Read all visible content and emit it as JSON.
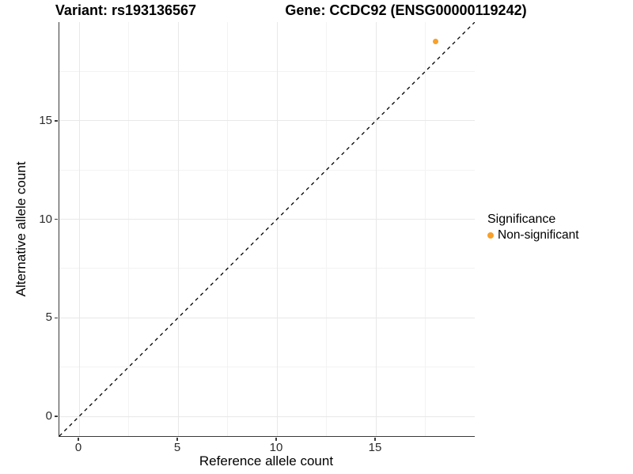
{
  "titles": {
    "variant": "Variant: rs193136567",
    "gene": "Gene: CCDC92 (ENSG00000119242)"
  },
  "chart_data": {
    "type": "scatter",
    "xlabel": "Reference allele count",
    "ylabel": "Alternative allele count",
    "x_range": [
      -1,
      20
    ],
    "y_range": [
      -1,
      20
    ],
    "x_ticks": [
      0,
      5,
      10,
      15
    ],
    "y_ticks": [
      0,
      5,
      10,
      15
    ],
    "x_minor_ticks": [
      2.5,
      7.5,
      12.5,
      17.5
    ],
    "y_minor_ticks": [
      2.5,
      7.5,
      12.5,
      17.5
    ],
    "grid": "major+minor",
    "points": [
      {
        "x": 18,
        "y": 19,
        "series": "Non-significant"
      }
    ],
    "reference_line": {
      "style": "dashed",
      "color": "#000000",
      "from": [
        -1,
        -1
      ],
      "to": [
        20,
        20
      ]
    },
    "legend": {
      "title": "Significance",
      "position": "right",
      "entries": [
        {
          "label": "Non-significant",
          "color": "#F8A029"
        }
      ]
    }
  },
  "colors": {
    "background": "#FFFFFF",
    "axis_line": "#3A3A3A",
    "grid_major": "#E8E8E8",
    "grid_minor": "#F3F3F3",
    "tick_label": "#2B2B2B",
    "text": "#000000",
    "point": "#F8A029"
  }
}
